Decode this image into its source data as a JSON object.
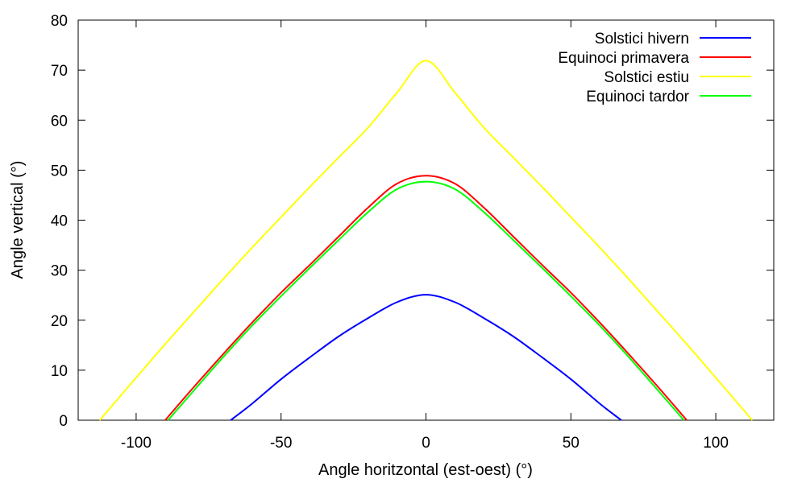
{
  "chart_data": {
    "type": "line",
    "title": "",
    "xlabel": "Angle horitzontal (est-oest) (°)",
    "ylabel": "Angle vertical (°)",
    "xlim": [
      -120,
      120
    ],
    "ylim": [
      0,
      80
    ],
    "xticks": [
      -100,
      -50,
      0,
      50,
      100
    ],
    "yticks": [
      0,
      10,
      20,
      30,
      40,
      50,
      60,
      70,
      80
    ],
    "grid": false,
    "legend_position": "top-right",
    "series": [
      {
        "name": "Solstici hivern",
        "color": "#0000ff",
        "x": [
          -67.4,
          -60,
          -50,
          -40,
          -30,
          -20,
          -10,
          0,
          10,
          20,
          30,
          40,
          50,
          60,
          67.4
        ],
        "y": [
          0,
          3.3,
          8.2,
          12.6,
          16.8,
          20.4,
          23.6,
          25.1,
          23.6,
          20.4,
          16.8,
          12.6,
          8.2,
          3.3,
          0
        ]
      },
      {
        "name": "Equinoci primavera",
        "color": "#ff0000",
        "x": [
          -90,
          -80,
          -70,
          -60,
          -50,
          -40,
          -30,
          -20,
          -10,
          0,
          10,
          20,
          30,
          40,
          50,
          60,
          70,
          80,
          90
        ],
        "y": [
          0,
          6.7,
          13.2,
          19.5,
          25.5,
          31.1,
          36.8,
          42.5,
          47.3,
          48.9,
          47.3,
          42.5,
          36.8,
          31.1,
          25.5,
          19.5,
          13.2,
          6.7,
          0
        ]
      },
      {
        "name": "Solstici estiu",
        "color": "#ffff00",
        "x": [
          -112.6,
          -100,
          -90,
          -80,
          -70,
          -60,
          -50,
          -40,
          -30,
          -20,
          -10,
          0,
          10,
          20,
          30,
          40,
          50,
          60,
          70,
          80,
          90,
          100,
          112.6
        ],
        "y": [
          0,
          8.5,
          15.2,
          21.7,
          28.2,
          34.5,
          40.6,
          46.7,
          52.6,
          58.5,
          65.5,
          71.9,
          65.5,
          58.5,
          52.6,
          46.7,
          40.6,
          34.5,
          28.2,
          21.7,
          15.2,
          8.5,
          0
        ]
      },
      {
        "name": "Equinoci tardor",
        "color": "#00ff00",
        "x": [
          -89,
          -80,
          -70,
          -60,
          -50,
          -40,
          -30,
          -20,
          -10,
          0,
          10,
          20,
          30,
          40,
          50,
          60,
          70,
          80,
          89
        ],
        "y": [
          0,
          6.0,
          12.6,
          18.9,
          24.8,
          30.5,
          36.1,
          41.6,
          46.2,
          47.7,
          46.2,
          41.6,
          36.1,
          30.5,
          24.8,
          18.9,
          12.6,
          6.0,
          0
        ]
      }
    ]
  }
}
